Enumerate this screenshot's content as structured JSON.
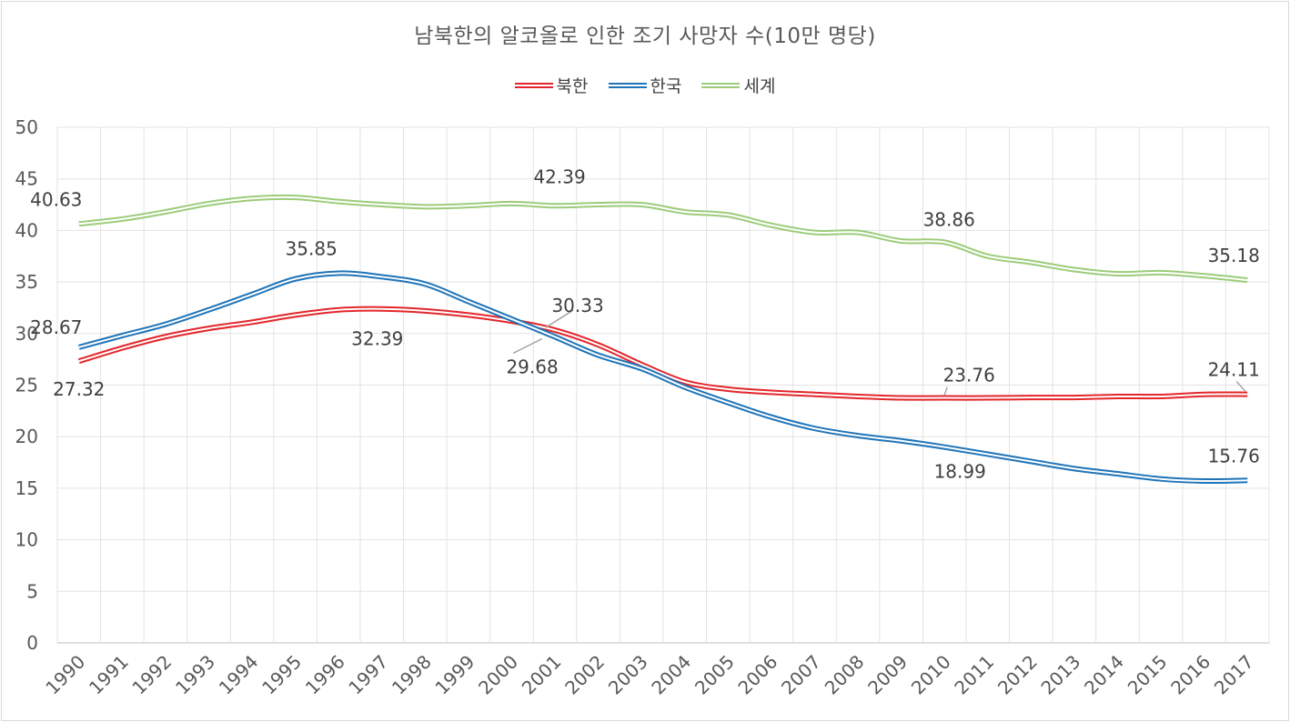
{
  "chart_data": {
    "type": "line",
    "title": "남북한의 알코올로 인한 조기 사망자 수(10만 명당)",
    "xlabel": "",
    "ylabel": "",
    "ylim": [
      0,
      50
    ],
    "yticks": [
      "0",
      "5",
      "10",
      "15",
      "20",
      "25",
      "30",
      "35",
      "40",
      "45",
      "50"
    ],
    "grid": true,
    "legend_position": "top",
    "categories": [
      "1990",
      "1991",
      "1992",
      "1993",
      "1994",
      "1995",
      "1996",
      "1997",
      "1998",
      "1999",
      "2000",
      "2001",
      "2002",
      "2003",
      "2004",
      "2005",
      "2006",
      "2007",
      "2008",
      "2009",
      "2010",
      "2011",
      "2012",
      "2013",
      "2014",
      "2015",
      "2016",
      "2017"
    ],
    "series": [
      {
        "name": "북한",
        "color": "#e3262b",
        "values": [
          27.32,
          28.6,
          29.7,
          30.5,
          31.1,
          31.8,
          32.3,
          32.39,
          32.2,
          31.8,
          31.2,
          30.33,
          28.9,
          27.0,
          25.3,
          24.6,
          24.3,
          24.1,
          23.9,
          23.76,
          23.76,
          23.76,
          23.8,
          23.8,
          23.9,
          23.9,
          24.1,
          24.11
        ]
      },
      {
        "name": "한국",
        "color": "#1f74b8",
        "values": [
          28.67,
          29.8,
          30.9,
          32.3,
          33.8,
          35.3,
          35.85,
          35.5,
          34.8,
          33.1,
          31.4,
          29.68,
          27.9,
          26.6,
          24.8,
          23.3,
          21.9,
          20.8,
          20.1,
          19.6,
          18.99,
          18.3,
          17.6,
          16.9,
          16.4,
          15.9,
          15.7,
          15.76
        ]
      },
      {
        "name": "세계",
        "color": "#9ccc7a",
        "values": [
          40.63,
          41.1,
          41.8,
          42.6,
          43.1,
          43.2,
          42.8,
          42.5,
          42.3,
          42.4,
          42.6,
          42.39,
          42.5,
          42.5,
          41.8,
          41.5,
          40.5,
          39.8,
          39.8,
          38.98,
          38.86,
          37.5,
          36.9,
          36.2,
          35.8,
          35.9,
          35.6,
          35.18
        ]
      }
    ],
    "data_labels": [
      {
        "series": 0,
        "index": 0,
        "text": "27.32"
      },
      {
        "series": 0,
        "index": 7,
        "text": "32.39"
      },
      {
        "series": 0,
        "index": 11,
        "text": "30.33"
      },
      {
        "series": 0,
        "index": 20,
        "text": "23.76"
      },
      {
        "series": 0,
        "index": 27,
        "text": "24.11"
      },
      {
        "series": 1,
        "index": 0,
        "text": "28.67"
      },
      {
        "series": 1,
        "index": 6,
        "text": "35.85"
      },
      {
        "series": 1,
        "index": 11,
        "text": "29.68"
      },
      {
        "series": 1,
        "index": 20,
        "text": "18.99"
      },
      {
        "series": 1,
        "index": 27,
        "text": "15.76"
      },
      {
        "series": 2,
        "index": 0,
        "text": "40.63"
      },
      {
        "series": 2,
        "index": 11,
        "text": "42.39"
      },
      {
        "series": 2,
        "index": 20,
        "text": "38.86"
      },
      {
        "series": 2,
        "index": 27,
        "text": "35.18"
      }
    ]
  }
}
